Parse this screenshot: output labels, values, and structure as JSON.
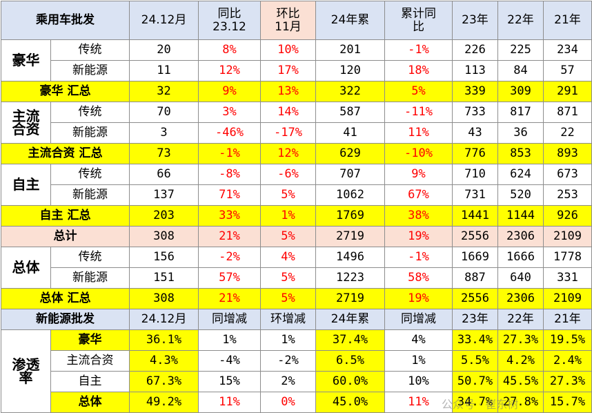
{
  "header": [
    "乘用车批发",
    "24.12月",
    "同比\n23.12",
    "环比\n11月",
    "24年累",
    "累计同\n比",
    "23年",
    "22年",
    "21年"
  ],
  "groups": [
    {
      "label": "豪华",
      "rows": [
        {
          "sub": "传统",
          "v": [
            "20",
            "8%",
            "10%",
            "201",
            "-1%",
            "226",
            "225",
            "234"
          ]
        },
        {
          "sub": "新能源",
          "v": [
            "11",
            "12%",
            "17%",
            "120",
            "18%",
            "113",
            "84",
            "57"
          ]
        }
      ],
      "total": {
        "label": "豪华 汇总",
        "v": [
          "32",
          "9%",
          "13%",
          "322",
          "5%",
          "339",
          "309",
          "291"
        ]
      }
    },
    {
      "label": "主流\n合资",
      "rows": [
        {
          "sub": "传统",
          "v": [
            "70",
            "3%",
            "14%",
            "587",
            "-11%",
            "733",
            "817",
            "871"
          ]
        },
        {
          "sub": "新能源",
          "v": [
            "3",
            "-46%",
            "-17%",
            "41",
            "11%",
            "43",
            "36",
            "22"
          ]
        }
      ],
      "total": {
        "label": "主流合资 汇总",
        "v": [
          "73",
          "-1%",
          "12%",
          "629",
          "-10%",
          "776",
          "853",
          "893"
        ]
      }
    },
    {
      "label": "自主",
      "rows": [
        {
          "sub": "传统",
          "v": [
            "66",
            "-8%",
            "-6%",
            "707",
            "9%",
            "710",
            "624",
            "673"
          ]
        },
        {
          "sub": "新能源",
          "v": [
            "137",
            "71%",
            "5%",
            "1062",
            "67%",
            "731",
            "520",
            "253"
          ]
        }
      ],
      "total": {
        "label": "自主 汇总",
        "v": [
          "203",
          "33%",
          "1%",
          "1769",
          "38%",
          "1441",
          "1144",
          "926"
        ]
      }
    }
  ],
  "grand_total": {
    "label": "总计",
    "v": [
      "308",
      "21%",
      "5%",
      "2719",
      "19%",
      "2556",
      "2306",
      "2109"
    ]
  },
  "overall": {
    "label": "总体",
    "rows": [
      {
        "sub": "传统",
        "v": [
          "156",
          "-2%",
          "4%",
          "1496",
          "-1%",
          "1669",
          "1666",
          "1778"
        ]
      },
      {
        "sub": "新能源",
        "v": [
          "151",
          "57%",
          "5%",
          "1223",
          "58%",
          "887",
          "640",
          "331"
        ]
      }
    ],
    "total": {
      "label": "总体 汇总",
      "v": [
        "308",
        "21%",
        "5%",
        "2719",
        "19%",
        "2556",
        "2306",
        "2109"
      ]
    }
  },
  "nev_header": [
    "新能源批发",
    "24.12月",
    "同增减",
    "环增减",
    "24年累",
    "同增减",
    "23年",
    "22年",
    "21年"
  ],
  "penetration": {
    "label": "渗透\n率",
    "rows": [
      {
        "sub": "豪华",
        "v": [
          "36.1%",
          "1%",
          "1%",
          "37.4%",
          "4%",
          "33.4%",
          "27.3%",
          "19.5%"
        ]
      },
      {
        "sub": "主流合资",
        "v": [
          "4.3%",
          "-4%",
          "-2%",
          "6.5%",
          "1%",
          "5.5%",
          "4.2%",
          "2.4%"
        ]
      },
      {
        "sub": "自主",
        "v": [
          "67.3%",
          "15%",
          "2%",
          "60.0%",
          "10%",
          "50.7%",
          "45.5%",
          "27.3%"
        ]
      },
      {
        "sub": "总体",
        "v": [
          "49.2%",
          "11%",
          "0%",
          "45.0%",
          "11%",
          "34.7%",
          "27.8%",
          "15.7%"
        ]
      }
    ]
  },
  "watermark": "公众号 · 崔东树"
}
